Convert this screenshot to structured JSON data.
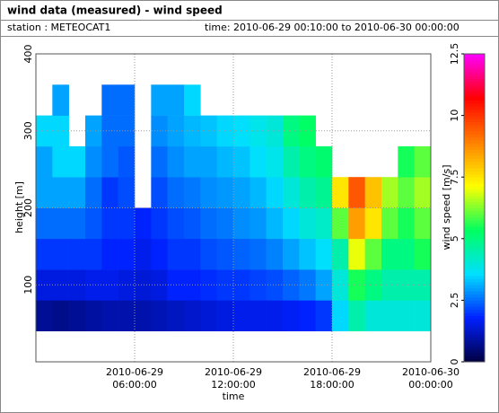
{
  "header": {
    "title": "wind data (measured) - wind speed",
    "station": "station : METEOCAT1",
    "time": "time: 2010-06-29 00:10:00 to 2010-06-30 00:00:00"
  },
  "chart_data": {
    "type": "heatmap",
    "x_label": "time",
    "y_label": "height [m]",
    "colorbar_label": "wind speed [m/s]",
    "xlim": [
      0,
      24
    ],
    "ylim": [
      0,
      400
    ],
    "xticks": [
      {
        "value": 6,
        "label": "2010-06-29 06:00:00"
      },
      {
        "value": 12,
        "label": "2010-06-29 12:00:00"
      },
      {
        "value": 18,
        "label": "2010-06-29 18:00:00"
      },
      {
        "value": 24,
        "label": "2010-06-30 00:00:00"
      }
    ],
    "yticks": [
      100,
      200,
      300,
      400
    ],
    "grid": true,
    "clim": [
      0,
      12.5
    ],
    "cticks": [
      0,
      2.5,
      5,
      7.5,
      10,
      12.5
    ],
    "colorscale": [
      "#000040",
      "#0020ff",
      "#00e0ff",
      "#00ff60",
      "#ffff00",
      "#ff8000",
      "#ff0000",
      "#ff00ff"
    ],
    "x_bins": [
      0,
      1,
      2,
      3,
      4,
      5,
      6,
      7,
      8,
      9,
      10,
      11,
      12,
      13,
      14,
      15,
      16,
      17,
      18,
      19,
      20,
      21,
      22,
      23,
      24
    ],
    "y_bins": [
      40,
      80,
      120,
      160,
      200,
      240,
      280,
      320,
      360
    ],
    "values": [
      [
        0.8,
        1.5,
        2,
        2.5,
        3,
        3,
        3.5,
        null
      ],
      [
        0.7,
        1.5,
        2,
        2.5,
        3,
        3.5,
        3.5,
        3
      ],
      [
        0.8,
        1.5,
        2,
        2.5,
        3,
        3.5,
        null,
        null
      ],
      [
        0.9,
        1.6,
        2,
        2.3,
        2.5,
        2.8,
        3,
        null
      ],
      [
        1,
        1.6,
        1.8,
        2,
        2,
        2.5,
        2.5,
        2.5
      ],
      [
        1,
        1.5,
        1.8,
        2,
        2.2,
        2.3,
        2.5,
        2.5
      ],
      [
        1,
        1.4,
        1.6,
        1.8,
        null,
        null,
        null,
        null
      ],
      [
        1.1,
        1.5,
        1.8,
        2,
        2.2,
        2.5,
        2.8,
        3
      ],
      [
        1.2,
        1.8,
        2,
        2.2,
        2.5,
        2.8,
        3,
        3
      ],
      [
        1.3,
        1.8,
        2,
        2.3,
        2.6,
        3,
        3.2,
        3.5
      ],
      [
        1.4,
        1.9,
        2.2,
        2.5,
        2.8,
        3,
        3.3,
        null
      ],
      [
        1.5,
        2,
        2.3,
        2.6,
        2.9,
        3.2,
        3.5,
        null
      ],
      [
        1.6,
        2,
        2.4,
        2.8,
        3,
        3.3,
        3.6,
        null
      ],
      [
        1.6,
        2.1,
        2.5,
        2.9,
        3.2,
        3.6,
        3.8,
        null
      ],
      [
        1.6,
        2.2,
        2.7,
        3.2,
        3.5,
        3.8,
        4,
        null
      ],
      [
        1.7,
        2.4,
        3,
        3.5,
        4,
        4.5,
        5,
        null
      ],
      [
        1.8,
        2.6,
        3.3,
        4,
        4.5,
        5,
        5.3,
        null
      ],
      [
        2,
        3,
        3.6,
        4.2,
        4.8,
        5.2,
        null,
        null
      ],
      [
        3.5,
        4,
        4.5,
        6,
        7.5,
        null,
        null,
        null
      ],
      [
        4.5,
        5.5,
        7,
        8.5,
        9.5,
        null,
        null,
        null
      ],
      [
        4,
        5,
        6,
        7.5,
        8,
        null,
        null,
        null
      ],
      [
        4,
        4.5,
        5,
        6,
        6.5,
        null,
        null,
        null
      ],
      [
        4,
        4.5,
        5,
        5.5,
        6,
        5.5,
        null,
        null
      ],
      [
        4,
        4.5,
        5.5,
        6,
        6.5,
        6,
        null,
        null
      ]
    ]
  }
}
